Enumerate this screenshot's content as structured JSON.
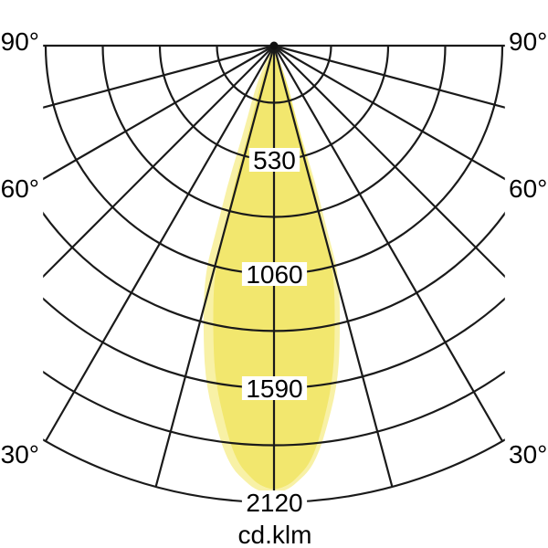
{
  "chart_data": {
    "type": "polar",
    "subtype": "photometric-intensity-distribution",
    "title": "",
    "unit": "cd.klm",
    "angle_labels": [
      "90°",
      "60°",
      "30°"
    ],
    "angle_label_degrees": [
      90,
      60,
      30
    ],
    "angle_grid_step_deg": 15,
    "angle_range_deg": [
      -90,
      90
    ],
    "radial_arc_values": [
      265,
      530,
      795,
      1060,
      1325,
      1590,
      1855,
      2120
    ],
    "radial_tick_labels": [
      "530",
      "1060",
      "1590",
      "2120"
    ],
    "radial_max": 2120,
    "grid_color": "#1a1a1a",
    "beam": {
      "name": "main-lobe",
      "color": "#f2e76e",
      "max_intensity_cd_klm": 2065,
      "beam_angle_full_deg": 30,
      "points_angle_deg_intensity": [
        [
          19.9,
          113
        ],
        [
          18.8,
          224
        ],
        [
          16.2,
          441
        ],
        [
          16.0,
          661
        ],
        [
          15.1,
          878
        ],
        [
          14.8,
          1096
        ],
        [
          11.8,
          1386
        ],
        [
          9.8,
          1592
        ],
        [
          7.1,
          1794
        ],
        [
          5.8,
          1890
        ],
        [
          4.6,
          1957
        ],
        [
          3.3,
          2000
        ],
        [
          2.0,
          2040
        ],
        [
          0,
          2065
        ]
      ]
    },
    "beam_secondary": {
      "name": "secondary-lobe",
      "color": "#f8f1a6",
      "width_scale": 1.11
    }
  }
}
